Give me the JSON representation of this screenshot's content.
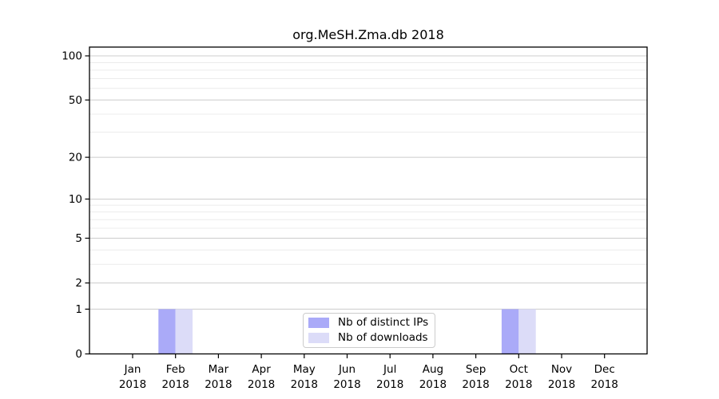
{
  "chart_data": {
    "type": "bar",
    "title": "org.MeSH.Zma.db 2018",
    "categories": [
      "Jan 2018",
      "Feb 2018",
      "Mar 2018",
      "Apr 2018",
      "May 2018",
      "Jun 2018",
      "Jul 2018",
      "Aug 2018",
      "Sep 2018",
      "Oct 2018",
      "Nov 2018",
      "Dec 2018"
    ],
    "series": [
      {
        "name": "Nb of distinct IPs",
        "color": "#aaaaf8",
        "values": [
          0,
          1,
          0,
          0,
          0,
          0,
          0,
          0,
          0,
          1,
          0,
          0
        ]
      },
      {
        "name": "Nb of downloads",
        "color": "#dcdcf8",
        "values": [
          0,
          1,
          0,
          0,
          0,
          0,
          0,
          0,
          0,
          1,
          0,
          0
        ]
      }
    ],
    "xlabel": "",
    "ylabel": "",
    "y_scale": "log1p",
    "ylim": [
      0,
      100
    ],
    "y_ticks": [
      0,
      1,
      2,
      5,
      10,
      20,
      50,
      100
    ],
    "y_minor_gridlines": [
      3,
      4,
      6,
      7,
      8,
      9,
      30,
      40,
      60,
      70,
      80,
      90
    ],
    "grid": true,
    "legend_position": "lower center",
    "colors": {
      "major_grid": "#cccccc",
      "minor_grid": "#ececec",
      "spine": "#000000",
      "text": "#000000",
      "background": "#ffffff"
    }
  }
}
